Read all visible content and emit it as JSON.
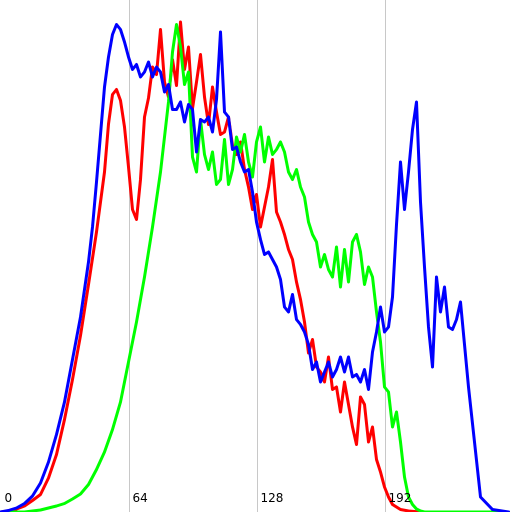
{
  "chart_data": {
    "type": "line",
    "title": "",
    "xlabel": "",
    "ylabel": "",
    "xlim": [
      0,
      255
    ],
    "ylim": [
      0,
      100
    ],
    "grid": "vertical",
    "legend": "none",
    "x_ticks": [
      {
        "value": 0,
        "label": "0"
      },
      {
        "value": 64,
        "label": "64"
      },
      {
        "value": 128,
        "label": "128"
      },
      {
        "value": 192,
        "label": "192"
      }
    ],
    "colors": {
      "background": "#ffffff",
      "grid": "#c8c8c8",
      "text": "#000000"
    },
    "series": [
      {
        "color": "#ff0000",
        "x": [
          0,
          4,
          8,
          12,
          16,
          20,
          24,
          28,
          32,
          36,
          40,
          44,
          48,
          52,
          54,
          56,
          58,
          60,
          62,
          64,
          66,
          68,
          70,
          72,
          74,
          76,
          78,
          80,
          82,
          84,
          86,
          88,
          90,
          92,
          94,
          96,
          98,
          100,
          102,
          104,
          106,
          108,
          110,
          112,
          114,
          116,
          118,
          120,
          122,
          124,
          126,
          128,
          130,
          132,
          134,
          136,
          138,
          140,
          142,
          144,
          146,
          148,
          150,
          152,
          154,
          156,
          158,
          160,
          162,
          164,
          166,
          168,
          170,
          172,
          174,
          176,
          178,
          180,
          182,
          184,
          186,
          188,
          190,
          192,
          194,
          196,
          200,
          204,
          210,
          216,
          222,
          228,
          234,
          240,
          246,
          250,
          254
        ],
        "y": [
          0.0,
          0.2,
          0.6,
          1.2,
          2.3,
          3.5,
          6.8,
          11.5,
          18.5,
          26.5,
          35.3,
          45.5,
          56.0,
          68.0,
          77.6,
          83.5,
          84.5,
          82.3,
          77.0,
          69.0,
          60.5,
          58.5,
          66.5,
          79.0,
          82.8,
          89.0,
          87.5,
          96.5,
          86.0,
          83.0,
          90.5,
          85.3,
          98.0,
          88.5,
          93.0,
          80.7,
          86.0,
          91.5,
          83.0,
          77.5,
          85.0,
          80.0,
          75.5,
          76.0,
          79.0,
          73.3,
          71.5,
          74.0,
          68.5,
          65.0,
          60.5,
          63.5,
          57.0,
          61.0,
          65.0,
          70.5,
          60.0,
          58.0,
          55.5,
          52.5,
          50.5,
          46.0,
          42.5,
          38.0,
          31.8,
          34.5,
          29.0,
          28.0,
          26.0,
          31.0,
          24.5,
          25.0,
          20.0,
          26.0,
          21.5,
          17.0,
          13.5,
          23.0,
          21.5,
          14.0,
          17.0,
          10.5,
          8.0,
          5.0,
          3.0,
          1.5,
          0.5,
          0.2,
          0.0,
          0.0,
          0.0,
          0.0,
          0.0,
          0.0,
          0.0,
          0.0,
          0.0
        ]
      },
      {
        "color": "#00ff00",
        "x": [
          0,
          4,
          8,
          12,
          16,
          20,
          24,
          28,
          32,
          36,
          40,
          44,
          48,
          52,
          56,
          60,
          64,
          68,
          72,
          76,
          80,
          84,
          86,
          88,
          90,
          92,
          94,
          96,
          98,
          100,
          102,
          104,
          106,
          108,
          110,
          112,
          114,
          116,
          118,
          120,
          122,
          124,
          126,
          128,
          130,
          132,
          134,
          136,
          138,
          140,
          142,
          144,
          146,
          148,
          150,
          152,
          154,
          156,
          158,
          160,
          162,
          164,
          166,
          168,
          170,
          172,
          174,
          176,
          178,
          180,
          182,
          184,
          186,
          188,
          190,
          192,
          194,
          196,
          198,
          200,
          202,
          204,
          206,
          208,
          210,
          212,
          214,
          218,
          222,
          228,
          234,
          240,
          246,
          250,
          254
        ],
        "y": [
          0.0,
          0.0,
          0.0,
          0.0,
          0.2,
          0.4,
          0.8,
          1.2,
          1.7,
          2.6,
          3.6,
          5.5,
          8.5,
          12.0,
          16.5,
          22.0,
          30.0,
          38.0,
          47.0,
          57.0,
          68.0,
          82.0,
          92.0,
          97.5,
          93.0,
          85.5,
          88.0,
          71.0,
          68.0,
          78.5,
          71.5,
          68.5,
          72.0,
          65.5,
          66.5,
          74.5,
          65.5,
          68.5,
          75.0,
          72.0,
          75.5,
          70.0,
          67.0,
          74.0,
          77.0,
          70.0,
          75.0,
          71.5,
          72.5,
          74.0,
          72.0,
          68.0,
          66.5,
          68.5,
          65.0,
          63.0,
          58.0,
          55.5,
          54.0,
          49.0,
          51.5,
          48.5,
          47.0,
          53.0,
          45.0,
          52.5,
          46.0,
          54.0,
          55.5,
          52.0,
          45.5,
          49.0,
          47.0,
          40.0,
          34.0,
          25.0,
          24.0,
          17.0,
          20.0,
          14.0,
          7.0,
          3.0,
          1.5,
          0.6,
          0.2,
          0.0,
          0.0,
          0.0,
          0.0,
          0.0,
          0.0,
          0.0,
          0.0,
          0.0,
          0.0
        ]
      },
      {
        "color": "#0000ff",
        "x": [
          0,
          4,
          8,
          12,
          16,
          20,
          24,
          28,
          32,
          36,
          40,
          44,
          46,
          48,
          50,
          52,
          54,
          56,
          58,
          60,
          62,
          64,
          66,
          68,
          70,
          72,
          74,
          76,
          78,
          80,
          82,
          84,
          86,
          88,
          90,
          92,
          94,
          96,
          98,
          100,
          102,
          104,
          106,
          108,
          110,
          112,
          114,
          116,
          118,
          120,
          122,
          124,
          126,
          128,
          130,
          132,
          134,
          136,
          138,
          140,
          142,
          144,
          146,
          148,
          150,
          152,
          154,
          156,
          158,
          160,
          162,
          164,
          166,
          168,
          170,
          172,
          174,
          176,
          178,
          180,
          182,
          184,
          186,
          188,
          190,
          192,
          194,
          196,
          198,
          200,
          202,
          204,
          206,
          208,
          210,
          212,
          214,
          216,
          218,
          220,
          222,
          224,
          226,
          228,
          230,
          234,
          240,
          246,
          254
        ],
        "y": [
          0.0,
          0.3,
          0.8,
          1.7,
          3.2,
          5.8,
          10.0,
          15.5,
          22.0,
          30.5,
          39.0,
          50.0,
          57.0,
          66.0,
          75.5,
          85.0,
          91.0,
          95.5,
          97.5,
          96.5,
          94.0,
          91.0,
          88.5,
          89.5,
          87.0,
          88.0,
          90.0,
          87.0,
          89.0,
          88.0,
          84.0,
          85.5,
          80.5,
          80.5,
          82.0,
          78.0,
          81.5,
          80.5,
          72.0,
          78.5,
          78.0,
          79.0,
          76.0,
          82.5,
          96.0,
          80.0,
          79.0,
          72.5,
          73.0,
          70.0,
          68.0,
          68.5,
          64.0,
          58.0,
          54.5,
          51.5,
          52.0,
          50.5,
          49.0,
          46.5,
          41.0,
          40.0,
          43.5,
          38.5,
          37.5,
          36.0,
          33.5,
          28.5,
          30.0,
          26.0,
          28.0,
          30.0,
          27.0,
          28.5,
          31.0,
          28.0,
          31.0,
          27.0,
          27.5,
          26.0,
          28.5,
          24.5,
          32.0,
          36.0,
          41.0,
          36.0,
          37.0,
          43.0,
          57.5,
          70.0,
          60.5,
          68.0,
          76.5,
          82.0,
          62.0,
          49.0,
          37.0,
          29.0,
          47.0,
          40.0,
          45.0,
          37.0,
          36.5,
          38.5,
          42.0,
          25.0,
          3.0,
          0.5,
          0.0
        ]
      }
    ]
  }
}
